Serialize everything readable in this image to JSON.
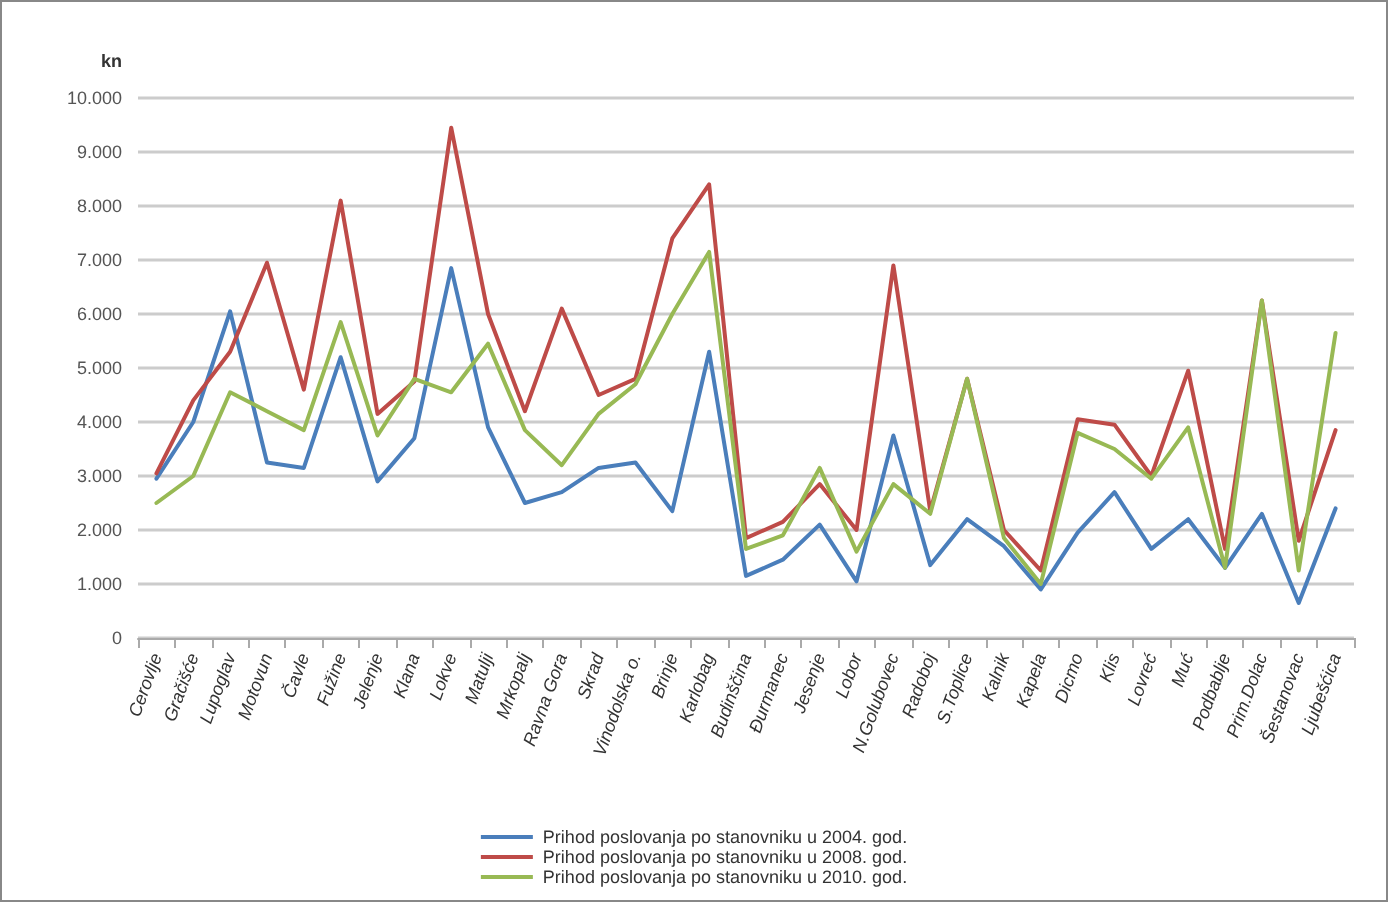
{
  "chart_data": {
    "type": "line",
    "ylabel": "kn",
    "categories": [
      "Cerovlje",
      "Gračišće",
      "Lupoglav",
      "Motovun",
      "Čavle",
      "Fužine",
      "Jelenje",
      "Klana",
      "Lokve",
      "Matulji",
      "Mrkopalj",
      "Ravna Gora",
      "Skrad",
      "Vinodolska o.",
      "Brinje",
      "Karlobag",
      "Budinščina",
      "Đurmanec",
      "Jesenje",
      "Lobor",
      "N.Golubovec",
      "Radoboj",
      "S.Toplice",
      "Kalnik",
      "Kapela",
      "Dicmo",
      "Klis",
      "Lovreć",
      "Muć",
      "Podbablje",
      "Prim.Dolac",
      "Šestanovac",
      "Ljubešćica"
    ],
    "series": [
      {
        "name": "Prihod poslovanja po stanovniku u 2004. god.",
        "color": "#4a7ebb",
        "values": [
          2950,
          4000,
          6050,
          3250,
          3150,
          5200,
          2900,
          3700,
          6850,
          3900,
          2500,
          2700,
          3150,
          3250,
          2350,
          5300,
          1150,
          1450,
          2100,
          1050,
          3750,
          1350,
          2200,
          1700,
          900,
          1950,
          2700,
          1650,
          2200,
          1300,
          2300,
          650,
          2400
        ]
      },
      {
        "name": "Prihod poslovanja po stanovniku u 2008. god.",
        "color": "#be4b48",
        "values": [
          3050,
          4400,
          5300,
          6950,
          4600,
          8100,
          4150,
          4750,
          9450,
          6000,
          4200,
          6100,
          4500,
          4800,
          7400,
          8400,
          1850,
          2150,
          2850,
          2000,
          6900,
          2350,
          4800,
          2000,
          1250,
          4050,
          3950,
          3000,
          4950,
          1650,
          6250,
          1800,
          3850
        ]
      },
      {
        "name": "Prihod poslovanja po stanovniku u 2010. god.",
        "color": "#98b954",
        "values": [
          2500,
          3000,
          4550,
          4200,
          3850,
          5850,
          3750,
          4800,
          4550,
          5450,
          3850,
          3200,
          4150,
          4700,
          6000,
          7150,
          1650,
          1900,
          3150,
          1600,
          2850,
          2300,
          4800,
          1850,
          1000,
          3800,
          3500,
          2950,
          3900,
          1300,
          6250,
          1250,
          5650
        ]
      }
    ],
    "ylim": [
      0,
      10000
    ],
    "yticks": [
      {
        "value": 0,
        "label": "0"
      },
      {
        "value": 1000,
        "label": "1.000"
      },
      {
        "value": 2000,
        "label": "2.000"
      },
      {
        "value": 3000,
        "label": "3.000"
      },
      {
        "value": 4000,
        "label": "4.000"
      },
      {
        "value": 5000,
        "label": "5.000"
      },
      {
        "value": 6000,
        "label": "6.000"
      },
      {
        "value": 7000,
        "label": "7.000"
      },
      {
        "value": 8000,
        "label": "8.000"
      },
      {
        "value": 9000,
        "label": "9.000"
      },
      {
        "value": 10000,
        "label": "10.000"
      }
    ],
    "grid": "y",
    "legend": "bottom",
    "marker": "none",
    "line_style": "solid"
  }
}
